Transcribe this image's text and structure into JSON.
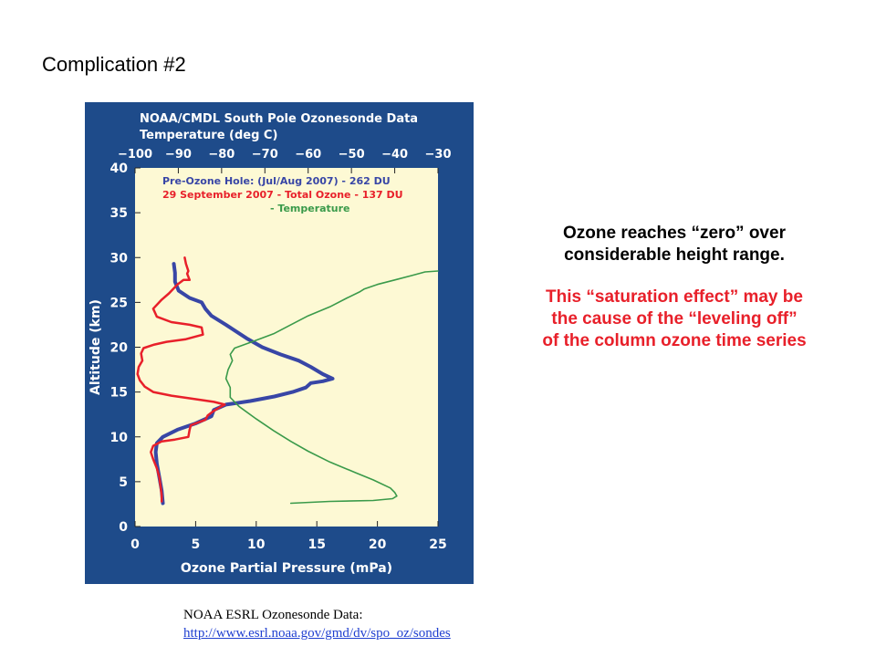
{
  "slide": {
    "title": "Complication #2",
    "note_black_lines": [
      "Ozone reaches “zero” over",
      "considerable height range."
    ],
    "note_red_lines": [
      "This “saturation effect” may be",
      "the cause of the “leveling off”",
      "of the column ozone time series"
    ],
    "credit_label": "NOAA ESRL Ozonesonde Data:",
    "credit_link": "http://www.esrl.noaa.gov/gmd/dv/spo_oz/sondes"
  },
  "colors": {
    "frame": "#1e4b8a",
    "plot_bg": "#fdf9d4",
    "pre_hole": "#3846a6",
    "sept": "#e8202a",
    "temperature": "#3a9a4a",
    "frame_text": "#ffffff"
  },
  "chart_data": {
    "type": "line",
    "title": "NOAA/CMDL South Pole Ozonesonde Data",
    "top_axis_label": "Temperature (deg C)",
    "xlabel": "Ozone Partial Pressure (mPa)",
    "ylabel": "Altitude (km)",
    "xlim": [
      0,
      25
    ],
    "temp_lim": [
      -100,
      -30
    ],
    "ylim": [
      0,
      40
    ],
    "x_ticks": [
      0,
      5,
      10,
      15,
      20,
      25
    ],
    "temp_ticks": [
      -100,
      -90,
      -80,
      -70,
      -60,
      -50,
      -40,
      -30
    ],
    "y_ticks": [
      0,
      5,
      10,
      15,
      20,
      25,
      30,
      35,
      40
    ],
    "legend": [
      {
        "key": "pre_hole",
        "label": "Pre-Ozone Hole: (Jul/Aug 2007) - 262 DU"
      },
      {
        "key": "sept",
        "label": "29 September 2007 - Total Ozone - 137 DU"
      },
      {
        "key": "temperature",
        "label": "- Temperature"
      }
    ],
    "series": [
      {
        "key": "pre_hole",
        "name": "Pre-Ozone Hole: (Jul/Aug 2007) - 262 DU",
        "axis": "ozone",
        "width": 4,
        "points": [
          [
            2.3,
            2.6
          ],
          [
            2.2,
            4
          ],
          [
            2,
            5.5
          ],
          [
            1.8,
            7
          ],
          [
            1.7,
            8.3
          ],
          [
            1.8,
            9.3
          ],
          [
            2.3,
            10
          ],
          [
            3.5,
            10.8
          ],
          [
            5,
            11.5
          ],
          [
            6.3,
            12.3
          ],
          [
            6.5,
            13
          ],
          [
            7.5,
            13.6
          ],
          [
            9.5,
            14
          ],
          [
            11.5,
            14.5
          ],
          [
            13,
            15
          ],
          [
            14.1,
            15.5
          ],
          [
            14.5,
            16
          ],
          [
            15.5,
            16.2
          ],
          [
            16.3,
            16.5
          ],
          [
            15.5,
            17
          ],
          [
            14.5,
            17.8
          ],
          [
            13.5,
            18.5
          ],
          [
            12,
            19.2
          ],
          [
            10.5,
            20
          ],
          [
            9.2,
            21
          ],
          [
            7.5,
            22.5
          ],
          [
            6.3,
            23.5
          ],
          [
            5.8,
            24.3
          ],
          [
            5.5,
            25
          ],
          [
            4.5,
            25.5
          ],
          [
            3.6,
            26.3
          ],
          [
            3.3,
            27.3
          ],
          [
            3.3,
            28.3
          ],
          [
            3.2,
            29.3
          ]
        ]
      },
      {
        "key": "sept",
        "name": "29 September 2007 - Total Ozone - 137 DU",
        "axis": "ozone",
        "width": 2.5,
        "points": [
          [
            2.2,
            2.8
          ],
          [
            2.2,
            3.5
          ],
          [
            2.1,
            4.5
          ],
          [
            2,
            5.5
          ],
          [
            1.8,
            6.5
          ],
          [
            1.5,
            7.5
          ],
          [
            1.3,
            8.3
          ],
          [
            1.5,
            9
          ],
          [
            2.2,
            9.5
          ],
          [
            3.3,
            9.7
          ],
          [
            4.4,
            10
          ],
          [
            4.5,
            10.8
          ],
          [
            4.6,
            11.3
          ],
          [
            5.2,
            11.6
          ],
          [
            5.8,
            11.9
          ],
          [
            6,
            12.4
          ],
          [
            6.5,
            12.9
          ],
          [
            7,
            13.3
          ],
          [
            7.4,
            13.6
          ],
          [
            6.5,
            13.9
          ],
          [
            4.5,
            14.3
          ],
          [
            3,
            14.6
          ],
          [
            1.5,
            15
          ],
          [
            0.8,
            15.6
          ],
          [
            0.4,
            16.3
          ],
          [
            0.2,
            17
          ],
          [
            0.3,
            17.8
          ],
          [
            0.6,
            18.5
          ],
          [
            0.5,
            19.3
          ],
          [
            0.7,
            19.9
          ],
          [
            1.6,
            20.3
          ],
          [
            2.6,
            20.6
          ],
          [
            4.2,
            20.9
          ],
          [
            5.6,
            21.4
          ],
          [
            5.5,
            22.2
          ],
          [
            4.5,
            22.5
          ],
          [
            3,
            22.8
          ],
          [
            1.8,
            23.4
          ],
          [
            1.5,
            24.3
          ],
          [
            2.2,
            25.3
          ],
          [
            2.8,
            26
          ],
          [
            3.5,
            27
          ],
          [
            4,
            27.5
          ],
          [
            4.5,
            27.5
          ],
          [
            4.3,
            28.2
          ],
          [
            4.4,
            28.5
          ],
          [
            4.2,
            29.3
          ],
          [
            4.1,
            30
          ]
        ]
      },
      {
        "key": "temperature",
        "name": "- Temperature",
        "axis": "temp",
        "width": 1.6,
        "points": [
          [
            -64,
            2.6
          ],
          [
            -55,
            2.8
          ],
          [
            -45,
            2.9
          ],
          [
            -40.5,
            3.1
          ],
          [
            -39.5,
            3.4
          ],
          [
            -40,
            3.8
          ],
          [
            -41,
            4.3
          ],
          [
            -45,
            5.2
          ],
          [
            -49,
            6
          ],
          [
            -55,
            7.2
          ],
          [
            -60,
            8.4
          ],
          [
            -64,
            9.5
          ],
          [
            -68,
            10.7
          ],
          [
            -72,
            12
          ],
          [
            -76,
            13.4
          ],
          [
            -78,
            14.4
          ],
          [
            -78,
            15.5
          ],
          [
            -79,
            16.5
          ],
          [
            -78.5,
            17.5
          ],
          [
            -77.5,
            18.5
          ],
          [
            -78,
            19.2
          ],
          [
            -77,
            19.9
          ],
          [
            -73,
            20.6
          ],
          [
            -68,
            21.5
          ],
          [
            -64,
            22.5
          ],
          [
            -60,
            23.5
          ],
          [
            -55,
            24.5
          ],
          [
            -51,
            25.5
          ],
          [
            -48,
            26.2
          ],
          [
            -47,
            26.5
          ],
          [
            -44,
            27
          ],
          [
            -40,
            27.5
          ],
          [
            -36,
            28
          ],
          [
            -33,
            28.4
          ],
          [
            -30,
            28.5
          ]
        ]
      }
    ]
  }
}
